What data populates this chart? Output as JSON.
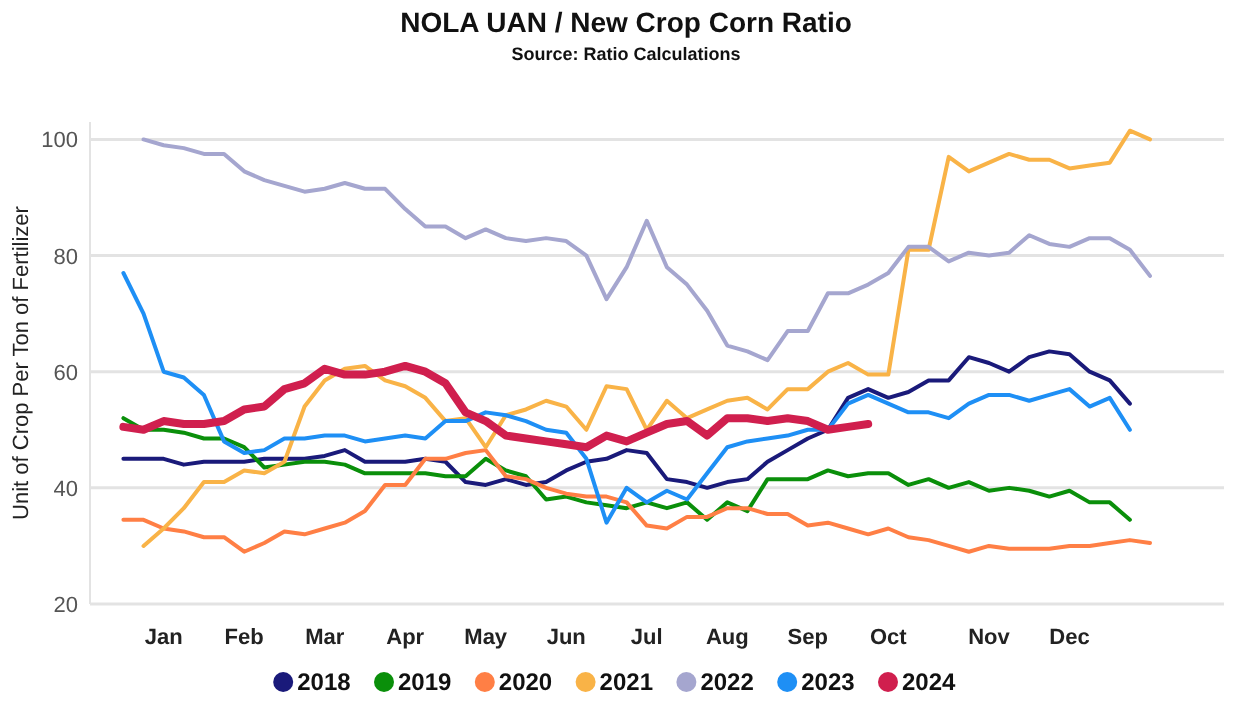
{
  "chart_data": {
    "type": "line",
    "title": "NOLA UAN / New Crop Corn Ratio",
    "subtitle": "Source: Ratio Calculations",
    "ylabel": "Unit of Crop Per Ton of Fertilizer",
    "categories": [
      null,
      null,
      "Jan",
      null,
      null,
      null,
      "Feb",
      null,
      null,
      null,
      "Mar",
      null,
      null,
      null,
      "Apr",
      null,
      null,
      null,
      "May",
      null,
      null,
      null,
      "Jun",
      null,
      null,
      null,
      "Jul",
      null,
      null,
      null,
      "Aug",
      null,
      null,
      null,
      "Sep",
      null,
      null,
      null,
      "Oct",
      null,
      null,
      null,
      null,
      "Nov",
      null,
      null,
      null,
      "Dec",
      null,
      null,
      null,
      null
    ],
    "ylim": [
      20,
      103
    ],
    "yticks": [
      20,
      40,
      60,
      80,
      100
    ],
    "grid": "y",
    "legend": "bottom",
    "marker": "none",
    "line_style": "solid",
    "series": [
      {
        "name": "2018",
        "color": "#1a1a7a",
        "values": [
          45,
          45,
          45,
          44,
          44.5,
          44.5,
          44.5,
          45,
          45,
          45,
          45.5,
          46.5,
          44.5,
          44.5,
          44.5,
          45,
          44.5,
          41,
          40.5,
          41.5,
          40.5,
          41,
          43,
          44.5,
          45,
          46.5,
          46,
          41.5,
          41,
          40,
          41,
          41.5,
          44.5,
          46.5,
          48.5,
          50,
          55.5,
          57,
          55.5,
          56.5,
          58.5,
          58.5,
          62.5,
          61.5,
          60,
          62.5,
          63.5,
          63,
          60,
          58.5,
          54.5,
          null
        ]
      },
      {
        "name": "2019",
        "color": "#0a8f0a",
        "values": [
          52,
          50,
          50,
          49.5,
          48.5,
          48.5,
          47,
          43.5,
          44,
          44.5,
          44.5,
          44,
          42.5,
          42.5,
          42.5,
          42.5,
          42,
          42,
          45,
          43,
          42,
          38,
          38.5,
          37.5,
          37,
          36.5,
          37.5,
          36.5,
          37.5,
          34.5,
          37.5,
          36,
          41.5,
          41.5,
          41.5,
          43,
          42,
          42.5,
          42.5,
          40.5,
          41.5,
          40,
          41,
          39.5,
          40,
          39.5,
          38.5,
          39.5,
          37.5,
          37.5,
          34.5,
          null
        ]
      },
      {
        "name": "2020",
        "color": "#ff7f45",
        "values": [
          34.5,
          34.5,
          33,
          32.5,
          31.5,
          31.5,
          29,
          30.5,
          32.5,
          32,
          33,
          34,
          36,
          40.5,
          40.5,
          45,
          45,
          46,
          46.5,
          42,
          41.5,
          40,
          39,
          38.5,
          38.5,
          37.5,
          33.5,
          33,
          35,
          35,
          36.5,
          36.5,
          35.5,
          35.5,
          33.5,
          34,
          33,
          32,
          33,
          31.5,
          31,
          30,
          29,
          30,
          29.5,
          29.5,
          29.5,
          30,
          30,
          30.5,
          31,
          30.5
        ]
      },
      {
        "name": "2021",
        "color": "#f9b347",
        "values": [
          null,
          30,
          33,
          36.5,
          41,
          41,
          43,
          42.5,
          44.5,
          54,
          58.5,
          60.5,
          61,
          58.5,
          57.5,
          55.5,
          51.5,
          52,
          47,
          52.5,
          53.5,
          55,
          54,
          50,
          57.5,
          57,
          50,
          55,
          52,
          53.5,
          55,
          55.5,
          53.5,
          57,
          57,
          60,
          61.5,
          59.5,
          59.5,
          81,
          81,
          97,
          94.5,
          96,
          97.5,
          96.5,
          96.5,
          95,
          95.5,
          96,
          101.5,
          100
        ]
      },
      {
        "name": "2022",
        "color": "#a5a6cf",
        "values": [
          null,
          100,
          99,
          98.5,
          97.5,
          97.5,
          94.5,
          93,
          92,
          91,
          91.5,
          92.5,
          91.5,
          91.5,
          88,
          85,
          85,
          83,
          84.5,
          83,
          82.5,
          83,
          82.5,
          80,
          72.5,
          78,
          86,
          78,
          75,
          70.5,
          64.5,
          63.5,
          62,
          67,
          67,
          73.5,
          73.5,
          75,
          77,
          81.5,
          81.5,
          79,
          80.5,
          80,
          80.5,
          83.5,
          82,
          81.5,
          83,
          83,
          81,
          76.5
        ]
      },
      {
        "name": "2023",
        "color": "#1e8ff5",
        "values": [
          77,
          70,
          60,
          59,
          56,
          48,
          46,
          46.5,
          48.5,
          48.5,
          49,
          49,
          48,
          48.5,
          49,
          48.5,
          51.5,
          51.5,
          53,
          52.5,
          51.5,
          50,
          49.5,
          45,
          34,
          40,
          37.5,
          39.5,
          38,
          42.5,
          47,
          48,
          48.5,
          49,
          50,
          50,
          54.5,
          56,
          54.5,
          53,
          53,
          52,
          54.5,
          56,
          56,
          55,
          56,
          57,
          54,
          55.5,
          50,
          null
        ]
      },
      {
        "name": "2024",
        "color": "#d01f4e",
        "values": [
          50.5,
          50,
          51.5,
          51,
          51,
          51.5,
          53.5,
          54,
          57,
          58,
          60.5,
          59.5,
          59.5,
          60,
          61,
          60,
          58,
          53,
          51.5,
          49,
          48.5,
          48,
          47.5,
          47,
          49,
          48,
          49.5,
          51,
          51.5,
          49,
          52,
          52,
          51.5,
          52,
          51.5,
          50,
          50.5,
          51,
          null,
          null,
          null,
          null,
          null,
          null,
          null,
          null,
          null,
          null,
          null,
          null,
          null,
          null
        ]
      }
    ]
  }
}
